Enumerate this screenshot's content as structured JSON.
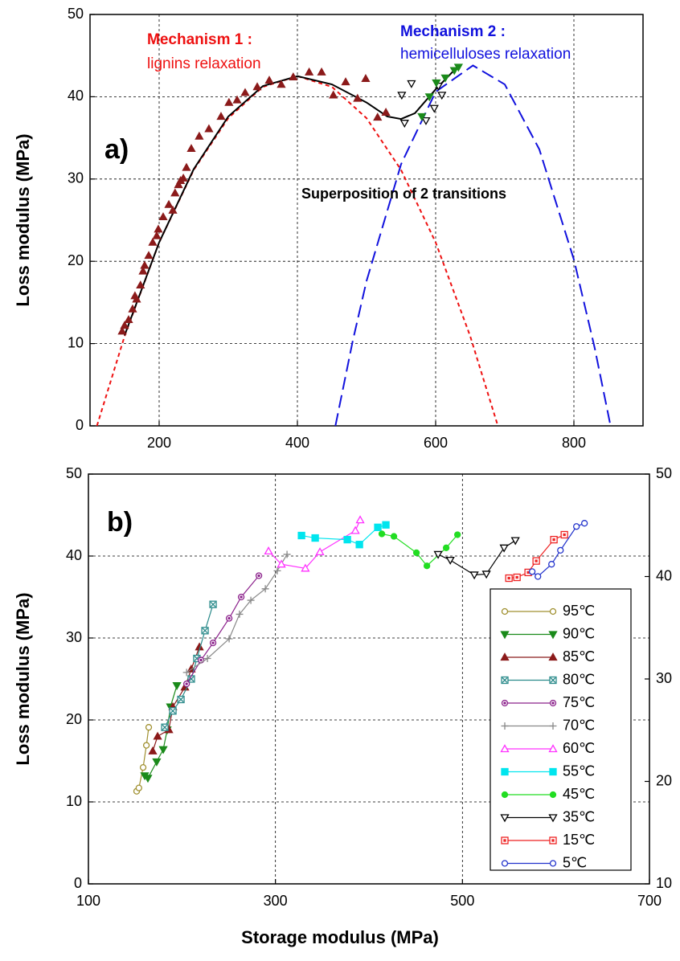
{
  "chart_data": [
    {
      "type": "line",
      "y_label": "Loss modulus (MPa)",
      "xlim": [
        100,
        900
      ],
      "xticks": [
        200,
        400,
        600,
        800
      ],
      "ylim": [
        0,
        50
      ],
      "yticks": [
        0,
        10,
        20,
        30,
        40,
        50
      ],
      "grid": true,
      "annotations": [
        {
          "text": "Mechanism 1 :",
          "color": "#ee1111"
        },
        {
          "text": "lignins relaxation",
          "color": "#ee1111"
        },
        {
          "text": "Mechanism 2 :",
          "color": "#1111dd"
        },
        {
          "text": "hemicelluloses relaxation",
          "color": "#1111dd"
        },
        {
          "text": "a)",
          "color": "#000000"
        },
        {
          "text": "Superposition of 2 transitions",
          "color": "#000000"
        }
      ],
      "series": [
        {
          "color": "#ee1111",
          "mode": "lines",
          "dash": "short",
          "x": [
            110,
            150,
            200,
            250,
            300,
            350,
            400,
            450,
            500,
            550,
            600,
            650,
            690
          ],
          "values": [
            0,
            10.9,
            22.3,
            31.1,
            37.4,
            41.2,
            42.5,
            41.2,
            37.4,
            31.1,
            22.3,
            10.9,
            0
          ]
        },
        {
          "color": "#1111dd",
          "mode": "lines",
          "dash": "long",
          "x": [
            455,
            480,
            500,
            550,
            600,
            654,
            700,
            750,
            800,
            830,
            853
          ],
          "values": [
            0,
            10.3,
            17.6,
            31.8,
            40.6,
            43.8,
            41.5,
            33.6,
            20.2,
            9.5,
            0
          ]
        },
        {
          "color": "#000000",
          "mode": "lines",
          "dash": "solid",
          "x": [
            150,
            200,
            250,
            300,
            350,
            400,
            450,
            500,
            530,
            550,
            570,
            600,
            630
          ],
          "values": [
            11,
            22.3,
            31.2,
            37.6,
            41.3,
            42.5,
            41.5,
            39.3,
            37.6,
            37.3,
            38.0,
            40.9,
            43.5
          ]
        },
        {
          "color": "#8b1a1a",
          "mode": "markers",
          "marker": "triangle-up",
          "x": [
            146.5,
            150,
            155.8,
            161.6,
            165,
            167.4,
            173,
            176.7,
            179,
            184.9,
            190.7,
            196.5,
            198.8,
            205.8,
            214,
            219.8,
            223,
            228,
            231,
            235,
            239.5,
            246.5,
            258,
            272,
            289.5,
            301,
            312.8,
            324.4,
            341.9,
            359.3,
            376.7,
            394,
            417,
            435,
            452,
            469.8,
            487,
            498.8,
            516,
            528
          ],
          "values": [
            11.5,
            12.2,
            12.9,
            14.2,
            15.8,
            15.4,
            17.1,
            18.8,
            19.5,
            20.7,
            22.3,
            23.1,
            23.9,
            25.4,
            26.9,
            26.2,
            28.3,
            29.3,
            29.8,
            30.1,
            31.4,
            33.7,
            35.2,
            36.1,
            37.6,
            39.3,
            39.6,
            40.5,
            41.2,
            42.0,
            41.5,
            42.4,
            43.0,
            43.0,
            40.2,
            41.8,
            39.8,
            42.2,
            37.5,
            38.1
          ]
        },
        {
          "color": "#000000",
          "mode": "markers",
          "marker": "triangle-down-open",
          "x": [
            551,
            565,
            555,
            586,
            598,
            609,
            604
          ],
          "values": [
            40.2,
            41.6,
            36.8,
            37.1,
            38.6,
            40.2,
            41.3
          ]
        },
        {
          "color": "#1a8a1a",
          "mode": "markers",
          "marker": "triangle-down",
          "x": [
            580,
            591,
            601,
            614,
            627,
            633
          ],
          "values": [
            37.6,
            40.0,
            41.7,
            42.3,
            43.2,
            43.6
          ]
        }
      ]
    },
    {
      "type": "line",
      "x_label": "Storage modulus (MPa)",
      "y_label": "Loss modulus (MPa)",
      "xlim": [
        100,
        700
      ],
      "xticks": [
        100,
        300,
        500,
        700
      ],
      "ylim": [
        0,
        50
      ],
      "yticks": [
        0,
        10,
        20,
        30,
        40,
        50
      ],
      "y2lim": [
        10,
        50
      ],
      "y2ticks": [
        10,
        20,
        30,
        40,
        50
      ],
      "grid": true,
      "legend": "lower right",
      "annotations": [
        {
          "text": "b)",
          "color": "#000000"
        }
      ],
      "series": [
        {
          "name": "95℃",
          "color": "#a09030",
          "mode": "lines+markers",
          "marker": "circle-open",
          "x": [
            151.6,
            154,
            158.5,
            162,
            164.5
          ],
          "values": [
            11.3,
            11.7,
            14.2,
            16.9,
            19.1
          ]
        },
        {
          "name": "90℃",
          "color": "#1a8a1a",
          "mode": "lines+markers",
          "marker": "triangle-down",
          "x": [
            160.2,
            163.6,
            173,
            180,
            184.3,
            187.7,
            194.6
          ],
          "values": [
            13.2,
            12.9,
            14.9,
            16.4,
            18.8,
            21.6,
            24.2
          ]
        },
        {
          "name": "85℃",
          "color": "#8b1a1a",
          "mode": "lines+markers",
          "marker": "triangle-up",
          "x": [
            168.8,
            174,
            186,
            190.3,
            203.2,
            210,
            218.7
          ],
          "values": [
            16.2,
            18.0,
            18.8,
            21.6,
            24.0,
            26.2,
            28.9
          ]
        },
        {
          "name": "80℃",
          "color": "#2a8a8a",
          "mode": "lines+markers",
          "marker": "square-x",
          "x": [
            181.7,
            190.3,
            198.9,
            210,
            216,
            224.7,
            233.3
          ],
          "values": [
            19.1,
            21.1,
            22.5,
            25.0,
            27.5,
            30.9,
            34.1
          ]
        },
        {
          "name": "75℃",
          "color": "#8b208b",
          "mode": "lines+markers",
          "marker": "circle-dot",
          "x": [
            205,
            220.4,
            233.3,
            250.5,
            263.4,
            282.3
          ],
          "values": [
            24.4,
            27.3,
            29.4,
            32.4,
            35.0,
            37.6
          ]
        },
        {
          "name": "70℃",
          "color": "#888888",
          "mode": "lines+markers",
          "marker": "plus",
          "x": [
            205,
            227.3,
            250.5,
            261.6,
            273.7,
            289.2,
            302,
            312.4
          ],
          "values": [
            25.8,
            27.5,
            29.9,
            32.9,
            34.6,
            36.0,
            38.2,
            40.2
          ]
        },
        {
          "name": "60℃",
          "color": "#ff33ff",
          "mode": "lines+markers",
          "marker": "triangle-up-open",
          "x": [
            292.6,
            306.4,
            332,
            347.6,
            385.5,
            390.6
          ],
          "values": [
            40.6,
            39.0,
            38.5,
            40.5,
            43.1,
            44.4
          ]
        },
        {
          "name": "55℃",
          "color": "#00e5ee",
          "mode": "lines+markers",
          "marker": "square",
          "x": [
            327.9,
            342.5,
            376.9,
            389.8,
            409.5,
            418.1
          ],
          "values": [
            42.5,
            42.2,
            42.0,
            41.4,
            43.5,
            43.8
          ]
        },
        {
          "name": "45℃",
          "color": "#22dd22",
          "mode": "lines+markers",
          "marker": "circle",
          "x": [
            413.8,
            426.7,
            450.8,
            462,
            482.6,
            494.7
          ],
          "values": [
            42.7,
            42.4,
            40.4,
            38.8,
            41.0,
            42.6
          ]
        },
        {
          "name": "35℃",
          "color": "#000000",
          "mode": "lines+markers",
          "marker": "triangle-down-open",
          "x": [
            474,
            487,
            512.7,
            525.6,
            544.5,
            556.6
          ],
          "values": [
            40.2,
            39.5,
            37.7,
            37.8,
            41.0,
            41.9
          ]
        },
        {
          "name": "15℃",
          "color": "#ee2222",
          "mode": "lines+markers",
          "marker": "square-dot",
          "x": [
            549.7,
            558.3,
            570.3,
            578.9,
            597.8,
            609
          ],
          "values": [
            37.3,
            37.4,
            38.0,
            39.4,
            42.0,
            42.6
          ]
        },
        {
          "name": "5℃",
          "color": "#2233cc",
          "mode": "lines+markers",
          "marker": "circle-open",
          "x": [
            574.6,
            580.7,
            595.3,
            604.8,
            621.9,
            630.5
          ],
          "values": [
            38.1,
            37.5,
            39.0,
            40.7,
            43.6,
            44.0
          ]
        }
      ]
    }
  ]
}
